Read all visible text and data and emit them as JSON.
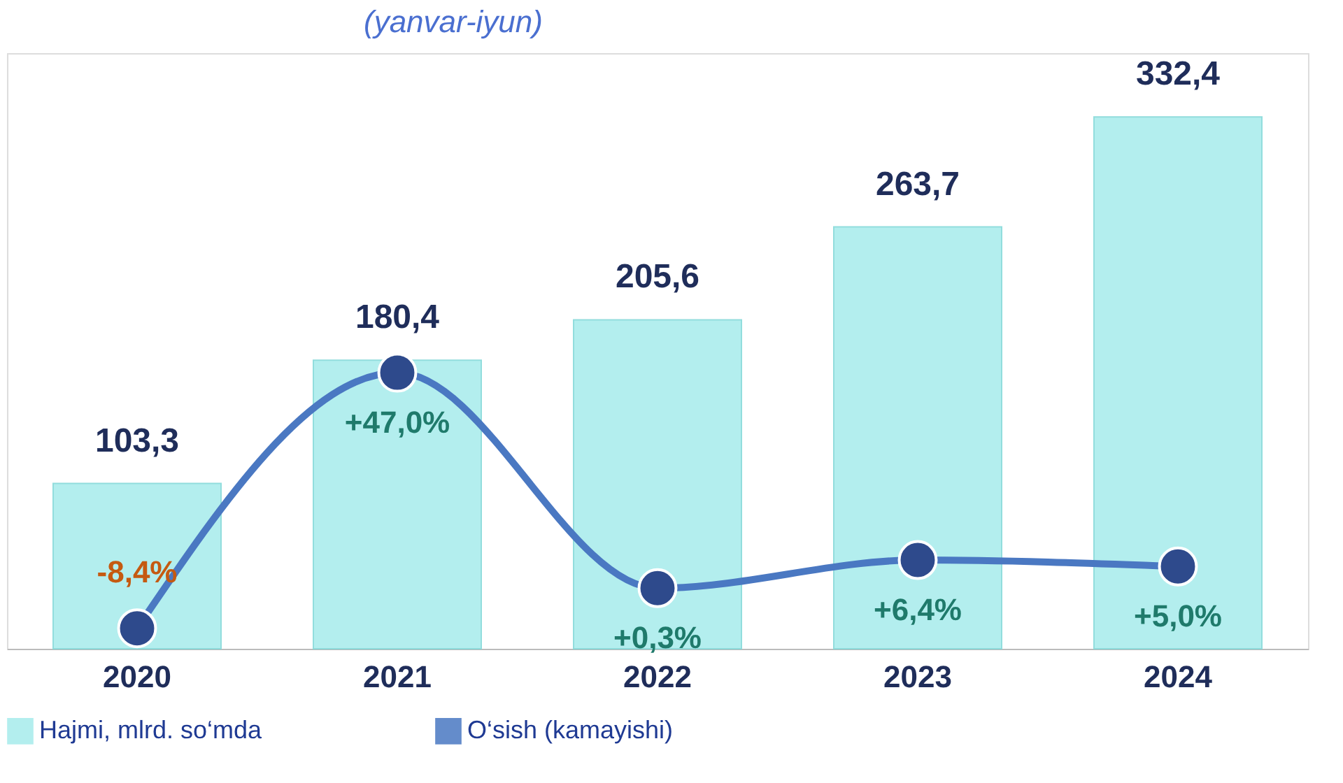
{
  "chart_data": {
    "type": "bar",
    "title": "(yanvar-iyun)",
    "categories": [
      "2020",
      "2021",
      "2022",
      "2023",
      "2024"
    ],
    "series": [
      {
        "name": "Hajmi, mlrd. so‘mda",
        "color": "#a6ecec",
        "values": [
          103.3,
          180.4,
          205.6,
          263.7,
          332.4
        ],
        "value_labels": [
          "103,3",
          "180,4",
          "205,6",
          "263,7",
          "332,4"
        ]
      },
      {
        "name": "O‘sish (kamayishi)",
        "type": "line",
        "axis": "y2",
        "color": "#4a78c2",
        "marker": "circle",
        "values": [
          -8.4,
          47.0,
          0.3,
          6.4,
          5.0
        ],
        "value_labels": [
          "-8,4%",
          "+47,0%",
          "+0,3%",
          "+6,4%",
          "+5,0%"
        ]
      }
    ],
    "legend": "bottom",
    "grid": false
  }
}
